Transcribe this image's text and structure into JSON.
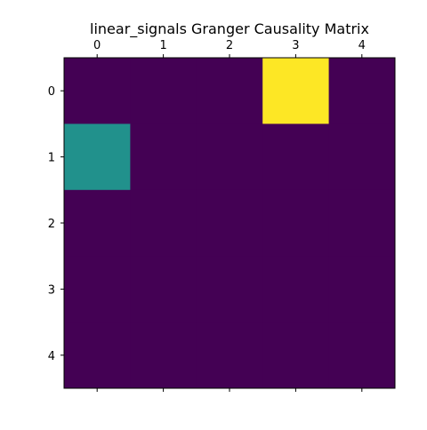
{
  "chart_data": {
    "type": "heatmap",
    "title": "linear_signals Granger Causality Matrix",
    "x_categories": [
      "0",
      "1",
      "2",
      "3",
      "4"
    ],
    "y_categories": [
      "0",
      "1",
      "2",
      "3",
      "4"
    ],
    "x_axis_position": "top",
    "grid": false,
    "colormap": "viridis",
    "values": [
      [
        0.0,
        0.0,
        0.0,
        1.0,
        0.0
      ],
      [
        0.5,
        0.0,
        0.0,
        0.0,
        0.0
      ],
      [
        0.0,
        0.0,
        0.0,
        0.0,
        0.0
      ],
      [
        0.0,
        0.0,
        0.0,
        0.0,
        0.0
      ],
      [
        0.0,
        0.0,
        0.0,
        0.0,
        0.0
      ]
    ],
    "value_range": [
      0,
      1
    ],
    "colors": {
      "low": "#440154",
      "mid": "#21918c",
      "high": "#fde725"
    }
  }
}
